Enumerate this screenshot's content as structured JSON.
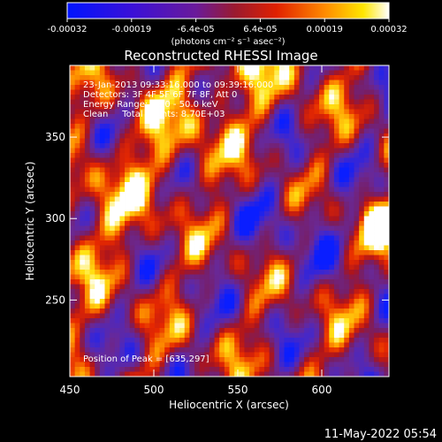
{
  "colorbar": {
    "tick_labels": [
      "-0.00032",
      "-0.00019",
      "-6.4e-05",
      "6.4e-05",
      "0.00019",
      "0.00032"
    ],
    "unit_label": "(photons cm⁻² s⁻¹ asec⁻²)"
  },
  "chart_data": {
    "type": "heatmap",
    "title": "Reconstructed RHESSI Image",
    "xlabel": "Heliocentric X (arcsec)",
    "ylabel": "Heliocentric Y (arcsec)",
    "xlim": [
      450,
      640
    ],
    "ylim": [
      203,
      394
    ],
    "x_ticks": [
      450,
      500,
      550,
      600
    ],
    "y_ticks": [
      250,
      300,
      350
    ],
    "value_range": [
      -0.00032,
      0.00032
    ],
    "colormap": "blue-purple-red-yellow-white",
    "annotations": [
      "23-Jan-2013 09:33:16.000 to 09:39:16.000",
      "Detectors: 3F 4F 5F 6F 7F 8F, Att 0",
      "Energy Range: 25.0 - 50.0 keV",
      "Clean     Total counts: 8.70E+03"
    ],
    "peak_label": "Position of Peak = [635,297]",
    "peak_position": [
      635,
      297
    ]
  },
  "timestamp": "11-May-2022 05:54"
}
